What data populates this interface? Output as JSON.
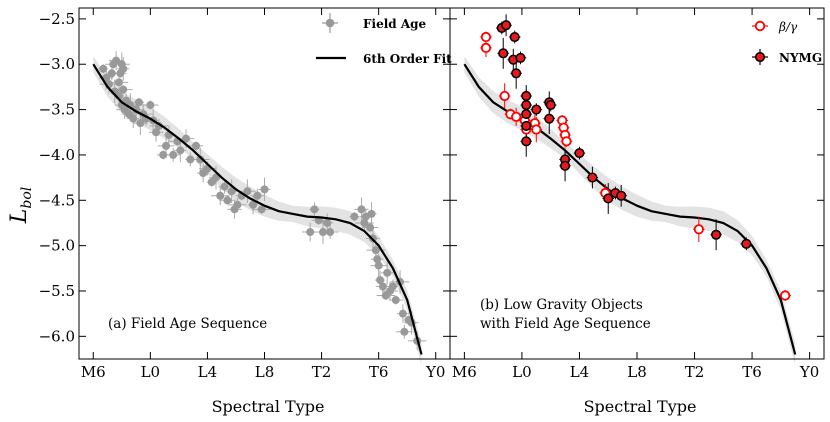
{
  "chart_data": [
    {
      "type": "scatter",
      "panel": "left",
      "x_ticks": [
        {
          "label": "M6",
          "value": 6
        },
        {
          "label": "L0",
          "value": 10
        },
        {
          "label": "L4",
          "value": 14
        },
        {
          "label": "L8",
          "value": 18
        },
        {
          "label": "T2",
          "value": 22
        },
        {
          "label": "T6",
          "value": 26
        },
        {
          "label": "Y0",
          "value": 30
        }
      ],
      "y_ticks": [
        "−2.5",
        "−3.0",
        "−3.5",
        "−4.0",
        "−4.5",
        "−5.0",
        "−5.5",
        "−6.0"
      ],
      "y_tick_values": [
        -2.5,
        -3.0,
        -3.5,
        -4.0,
        -4.5,
        -5.0,
        -5.5,
        -6.0
      ],
      "xlim": [
        5,
        31
      ],
      "ylim": [
        -6.25,
        -2.38
      ],
      "xlabel": "Spectral Type",
      "ylabel": "L",
      "ylabel_sub": "bol",
      "annotation": "(a) Field Age Sequence",
      "legend": [
        "Field Age",
        "6th Order Fit"
      ],
      "legend_position": "top-right",
      "fit_label": "6th Order Fit",
      "series": [
        {
          "name": "Field Age",
          "color": "#999999",
          "points": [
            [
              6.7,
              -3.05
            ],
            [
              6.9,
              -3.15
            ],
            [
              7.1,
              -3.22
            ],
            [
              7.3,
              -3.1
            ],
            [
              7.4,
              -3.0
            ],
            [
              7.5,
              -3.3
            ],
            [
              7.6,
              -2.96
            ],
            [
              7.8,
              -3.2
            ],
            [
              7.9,
              -3.1
            ],
            [
              8.0,
              -3.0
            ],
            [
              7.8,
              -3.35
            ],
            [
              8.0,
              -3.45
            ],
            [
              8.1,
              -3.28
            ],
            [
              8.1,
              -3.05
            ],
            [
              8.2,
              -3.5
            ],
            [
              8.3,
              -3.4
            ],
            [
              8.5,
              -3.55
            ],
            [
              8.6,
              -3.45
            ],
            [
              8.8,
              -3.6
            ],
            [
              9.0,
              -3.5
            ],
            [
              9.2,
              -3.42
            ],
            [
              9.3,
              -3.65
            ],
            [
              9.5,
              -3.55
            ],
            [
              9.7,
              -3.6
            ],
            [
              10.0,
              -3.45
            ],
            [
              10.2,
              -3.62
            ],
            [
              10.4,
              -3.75
            ],
            [
              10.6,
              -3.68
            ],
            [
              10.9,
              -4.0
            ],
            [
              11.1,
              -3.9
            ],
            [
              11.3,
              -3.78
            ],
            [
              11.6,
              -4.0
            ],
            [
              11.9,
              -3.85
            ],
            [
              12.1,
              -3.95
            ],
            [
              12.5,
              -3.82
            ],
            [
              12.8,
              -4.05
            ],
            [
              13.2,
              -3.9
            ],
            [
              13.5,
              -4.05
            ],
            [
              13.7,
              -4.2
            ],
            [
              14.0,
              -4.15
            ],
            [
              14.3,
              -4.3
            ],
            [
              14.6,
              -4.25
            ],
            [
              14.9,
              -4.45
            ],
            [
              15.2,
              -4.35
            ],
            [
              15.4,
              -4.5
            ],
            [
              15.7,
              -4.4
            ],
            [
              15.9,
              -4.6
            ],
            [
              16.1,
              -4.55
            ],
            [
              16.4,
              -4.45
            ],
            [
              16.8,
              -4.4
            ],
            [
              17.2,
              -4.55
            ],
            [
              17.5,
              -4.45
            ],
            [
              17.8,
              -4.6
            ],
            [
              18.0,
              -4.38
            ],
            [
              21.2,
              -4.85
            ],
            [
              21.5,
              -4.6
            ],
            [
              21.8,
              -4.72
            ],
            [
              22.1,
              -4.85
            ],
            [
              22.4,
              -4.75
            ],
            [
              22.6,
              -4.85
            ],
            [
              24.3,
              -4.68
            ],
            [
              24.8,
              -4.6
            ],
            [
              25.0,
              -4.75
            ],
            [
              25.1,
              -4.68
            ],
            [
              25.4,
              -4.8
            ],
            [
              25.5,
              -4.65
            ],
            [
              25.6,
              -4.92
            ],
            [
              25.8,
              -5.05
            ],
            [
              25.9,
              -5.15
            ],
            [
              26.0,
              -5.22
            ],
            [
              26.1,
              -5.38
            ],
            [
              26.3,
              -5.45
            ],
            [
              26.5,
              -5.55
            ],
            [
              26.6,
              -5.3
            ],
            [
              26.8,
              -5.5
            ],
            [
              27.0,
              -5.45
            ],
            [
              27.2,
              -5.6
            ],
            [
              27.5,
              -5.4
            ],
            [
              27.7,
              -5.75
            ],
            [
              27.8,
              -5.95
            ],
            [
              28.1,
              -5.82
            ],
            [
              28.3,
              -5.85
            ],
            [
              28.7,
              -6.05
            ]
          ]
        },
        {
          "name": "6th Order Fit",
          "color": "#000000",
          "x": [
            6.0,
            7.0,
            8.0,
            9.0,
            10.0,
            11.0,
            12.0,
            13.0,
            14.0,
            15.0,
            16.0,
            17.0,
            18.0,
            19.0,
            20.0,
            21.0,
            22.0,
            23.0,
            24.0,
            25.0,
            26.0,
            27.0,
            28.0,
            29.0
          ],
          "values": [
            -3.0,
            -3.25,
            -3.42,
            -3.52,
            -3.6,
            -3.7,
            -3.82,
            -3.95,
            -4.1,
            -4.25,
            -4.38,
            -4.48,
            -4.56,
            -4.62,
            -4.65,
            -4.68,
            -4.69,
            -4.71,
            -4.75,
            -4.84,
            -5.0,
            -5.25,
            -5.6,
            -6.2
          ]
        }
      ]
    },
    {
      "type": "scatter",
      "panel": "right",
      "x_ticks": [
        {
          "label": "M6",
          "value": 6
        },
        {
          "label": "L0",
          "value": 10
        },
        {
          "label": "L4",
          "value": 14
        },
        {
          "label": "L8",
          "value": 18
        },
        {
          "label": "T2",
          "value": 22
        },
        {
          "label": "T6",
          "value": 26
        },
        {
          "label": "Y0",
          "value": 30
        }
      ],
      "xlim": [
        5,
        31
      ],
      "ylim": [
        -6.25,
        -2.38
      ],
      "xlabel": "Spectral Type",
      "annotation_line1": "(b) Low Gravity Objects",
      "annotation_line2": "with Field Age Sequence",
      "legend": [
        "β/γ",
        "NYMG"
      ],
      "legend_position": "top-right",
      "series": [
        {
          "name": "β/γ",
          "color": "#ff0000",
          "points": [
            [
              7.5,
              -2.7
            ],
            [
              7.5,
              -2.82
            ],
            [
              8.8,
              -3.35
            ],
            [
              9.2,
              -3.55
            ],
            [
              9.6,
              -3.58
            ],
            [
              10.2,
              -3.62
            ],
            [
              10.3,
              -3.72
            ],
            [
              10.9,
              -3.65
            ],
            [
              11.0,
              -3.72
            ],
            [
              12.8,
              -3.62
            ],
            [
              12.9,
              -3.7
            ],
            [
              13.0,
              -3.78
            ],
            [
              13.1,
              -3.85
            ],
            [
              15.8,
              -4.42
            ],
            [
              22.3,
              -4.82
            ],
            [
              28.3,
              -5.55
            ]
          ]
        },
        {
          "name": "NYMG",
          "color": "#000000",
          "fill": "#e41a1c",
          "points": [
            [
              8.6,
              -2.6
            ],
            [
              8.9,
              -2.57
            ],
            [
              8.7,
              -2.88
            ],
            [
              9.5,
              -2.7
            ],
            [
              9.4,
              -2.95
            ],
            [
              9.6,
              -3.1
            ],
            [
              9.9,
              -2.93
            ],
            [
              10.3,
              -3.35
            ],
            [
              10.3,
              -3.45
            ],
            [
              10.3,
              -3.55
            ],
            [
              10.3,
              -3.68
            ],
            [
              10.3,
              -3.85
            ],
            [
              11.0,
              -3.5
            ],
            [
              11.9,
              -3.42
            ],
            [
              11.9,
              -3.6
            ],
            [
              12.0,
              -3.45
            ],
            [
              13.0,
              -4.05
            ],
            [
              13.0,
              -4.12
            ],
            [
              14.0,
              -3.98
            ],
            [
              14.9,
              -4.25
            ],
            [
              16.0,
              -4.48
            ],
            [
              16.5,
              -4.42
            ],
            [
              16.9,
              -4.45
            ],
            [
              23.5,
              -4.88
            ],
            [
              25.6,
              -4.98
            ]
          ]
        }
      ]
    }
  ]
}
